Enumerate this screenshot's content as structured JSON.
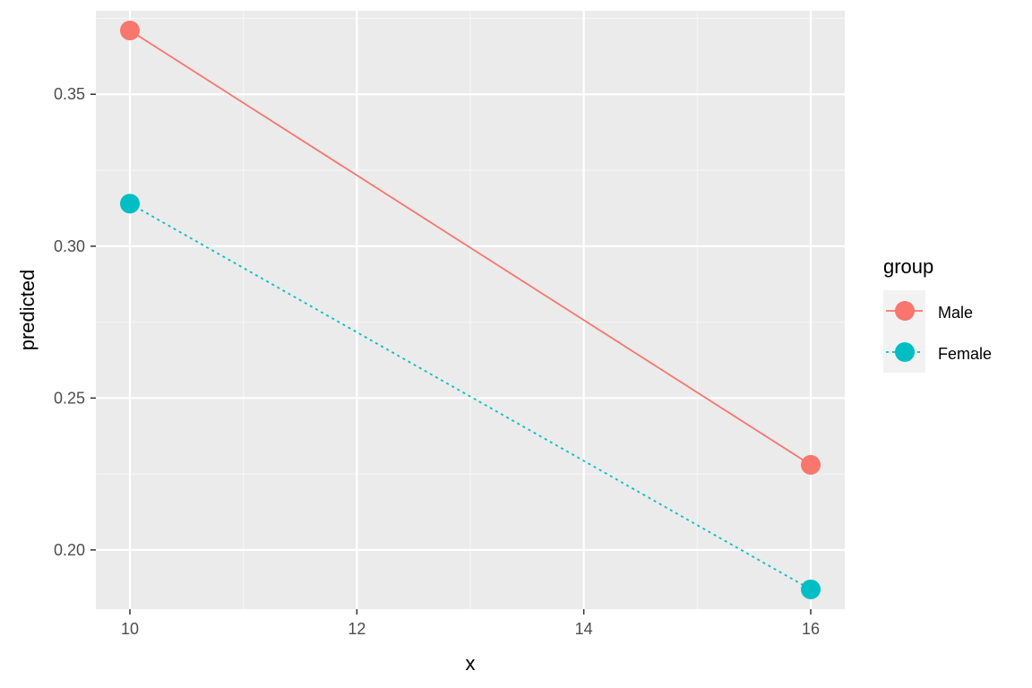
{
  "chart_data": {
    "type": "line",
    "xlabel": "x",
    "ylabel": "predicted",
    "x": [
      10,
      16
    ],
    "xlim": [
      9.7,
      16.3
    ],
    "ylim": [
      0.1805,
      0.3775
    ],
    "xticks": [
      10,
      12,
      14,
      16
    ],
    "xtick_labels": [
      "10",
      "12",
      "14",
      "16"
    ],
    "yticks": [
      0.2,
      0.25,
      0.3,
      0.35
    ],
    "ytick_labels": [
      "0.20",
      "0.25",
      "0.30",
      "0.35"
    ],
    "grid": true,
    "legend": {
      "title": "group",
      "placement": "right"
    },
    "series": [
      {
        "name": "Male",
        "values": [
          0.371,
          0.228
        ],
        "color": "#F8766D",
        "line_style": "solid"
      },
      {
        "name": "Female",
        "values": [
          0.314,
          0.187
        ],
        "color": "#00BFC4",
        "line_style": "dotted"
      }
    ]
  }
}
